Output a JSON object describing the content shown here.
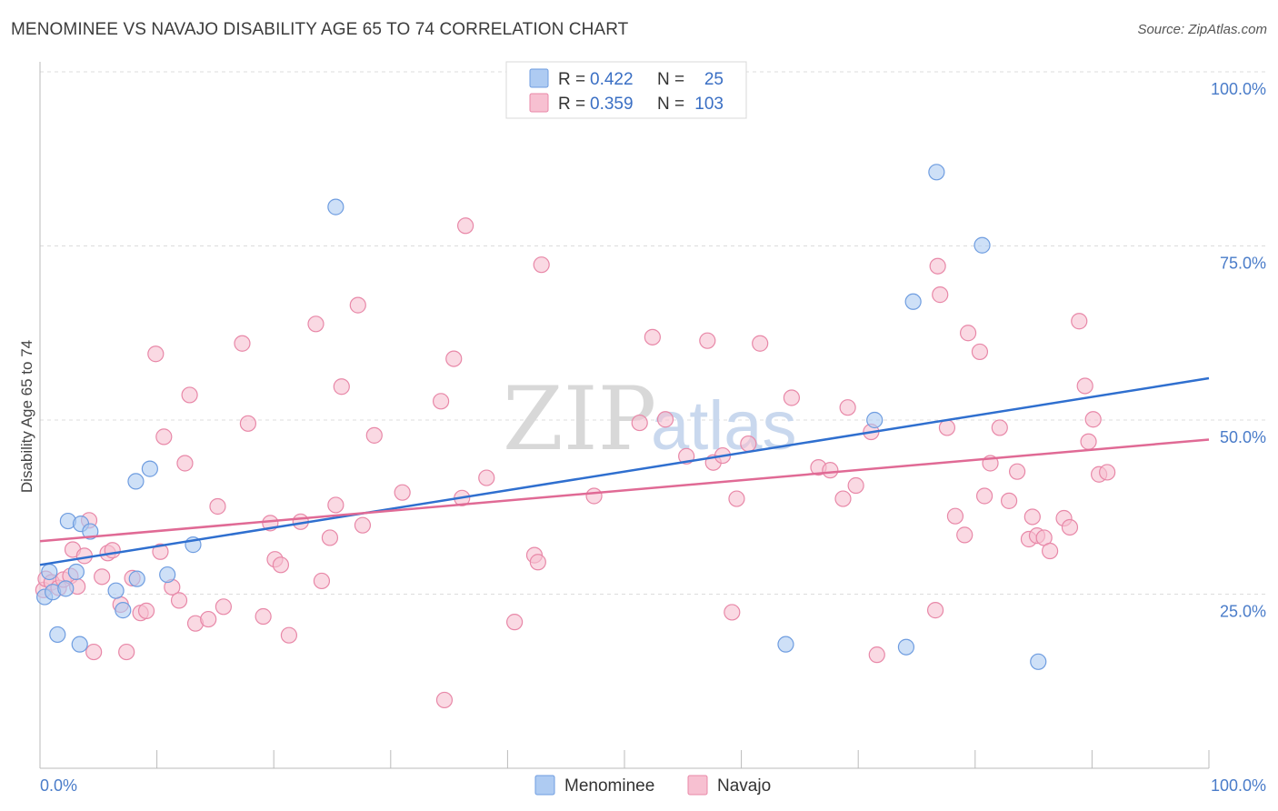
{
  "title": "MENOMINEE VS NAVAJO DISABILITY AGE 65 TO 74 CORRELATION CHART",
  "source": "Source: ZipAtlas.com",
  "watermark": {
    "part1": "ZIP",
    "part2": "atlas"
  },
  "legend": {
    "rows": [
      {
        "r_label": "R =",
        "r_value": "0.422",
        "n_label": "N =",
        "n_value": "25",
        "color": "#aecbf2",
        "stroke": "#6f9de0"
      },
      {
        "r_label": "R =",
        "r_value": "0.359",
        "n_label": "N =",
        "n_value": "103",
        "color": "#f7c0d1",
        "stroke": "#e888a8"
      }
    ]
  },
  "bottom_legend": [
    {
      "label": "Menominee",
      "color": "#aecbf2",
      "stroke": "#6f9de0"
    },
    {
      "label": "Navajo",
      "color": "#f7c0d1",
      "stroke": "#e888a8"
    }
  ],
  "chart_data": {
    "type": "scatter",
    "title": "MENOMINEE VS NAVAJO DISABILITY AGE 65 TO 74 CORRELATION CHART",
    "xlabel": "",
    "ylabel": "Disability Age 65 to 74",
    "xlim": [
      0,
      100
    ],
    "ylim": [
      0,
      100
    ],
    "x_tick_labels": {
      "left": "0.0%",
      "right": "100.0%"
    },
    "y_ticks": [
      {
        "value": 25,
        "label": "25.0%"
      },
      {
        "value": 50,
        "label": "50.0%"
      },
      {
        "value": 75,
        "label": "75.0%"
      },
      {
        "value": 100,
        "label": "100.0%"
      }
    ],
    "grid": true,
    "legend_position": "top-center",
    "series": [
      {
        "name": "Menominee",
        "color": "#6f9de0",
        "fill": "#aecbf2",
        "trend": {
          "x0": 0,
          "y0": 29.2,
          "x1": 100,
          "y1": 56.0,
          "color": "#2f6fcf"
        },
        "points": [
          [
            0.4,
            24.6
          ],
          [
            0.8,
            28.2
          ],
          [
            1.1,
            25.3
          ],
          [
            1.5,
            19.2
          ],
          [
            2.2,
            25.8
          ],
          [
            2.4,
            35.5
          ],
          [
            3.1,
            28.2
          ],
          [
            3.4,
            17.8
          ],
          [
            3.5,
            35.1
          ],
          [
            4.3,
            34.0
          ],
          [
            6.5,
            25.5
          ],
          [
            7.1,
            22.7
          ],
          [
            8.3,
            27.2
          ],
          [
            8.2,
            41.2
          ],
          [
            9.4,
            43.0
          ],
          [
            10.9,
            27.8
          ],
          [
            13.1,
            32.1
          ],
          [
            25.3,
            80.6
          ],
          [
            63.8,
            17.8
          ],
          [
            71.4,
            50.0
          ],
          [
            74.1,
            17.4
          ],
          [
            74.7,
            67.0
          ],
          [
            76.7,
            85.6
          ],
          [
            80.6,
            75.1
          ],
          [
            85.4,
            15.3
          ]
        ]
      },
      {
        "name": "Navajo",
        "color": "#e888a8",
        "fill": "#f7c0d1",
        "trend": {
          "x0": 0,
          "y0": 32.6,
          "x1": 100,
          "y1": 47.2,
          "color": "#e06a95"
        },
        "points": [
          [
            0.3,
            25.6
          ],
          [
            0.5,
            27.2
          ],
          [
            1.0,
            26.7
          ],
          [
            1.6,
            25.9
          ],
          [
            2.0,
            27.1
          ],
          [
            2.6,
            27.6
          ],
          [
            2.8,
            31.4
          ],
          [
            3.2,
            26.1
          ],
          [
            3.8,
            30.5
          ],
          [
            4.2,
            35.6
          ],
          [
            4.6,
            16.7
          ],
          [
            5.3,
            27.5
          ],
          [
            5.8,
            30.9
          ],
          [
            6.2,
            31.3
          ],
          [
            6.9,
            23.5
          ],
          [
            7.4,
            16.7
          ],
          [
            7.9,
            27.3
          ],
          [
            8.6,
            22.3
          ],
          [
            9.1,
            22.6
          ],
          [
            9.9,
            59.5
          ],
          [
            10.3,
            31.1
          ],
          [
            10.6,
            47.6
          ],
          [
            11.3,
            26.0
          ],
          [
            11.9,
            24.1
          ],
          [
            12.4,
            43.8
          ],
          [
            12.8,
            53.6
          ],
          [
            13.3,
            20.8
          ],
          [
            14.4,
            21.4
          ],
          [
            15.2,
            37.6
          ],
          [
            15.7,
            23.2
          ],
          [
            17.3,
            61.0
          ],
          [
            17.8,
            49.5
          ],
          [
            19.1,
            21.8
          ],
          [
            19.7,
            35.2
          ],
          [
            20.1,
            30.0
          ],
          [
            20.6,
            29.2
          ],
          [
            21.3,
            19.1
          ],
          [
            22.3,
            35.4
          ],
          [
            23.6,
            63.8
          ],
          [
            24.1,
            26.9
          ],
          [
            24.8,
            33.1
          ],
          [
            25.3,
            37.8
          ],
          [
            25.8,
            54.8
          ],
          [
            27.2,
            66.5
          ],
          [
            27.6,
            34.9
          ],
          [
            28.6,
            47.8
          ],
          [
            31.0,
            39.6
          ],
          [
            34.3,
            52.7
          ],
          [
            34.6,
            9.8
          ],
          [
            35.4,
            58.8
          ],
          [
            36.1,
            38.8
          ],
          [
            36.4,
            77.9
          ],
          [
            38.2,
            41.7
          ],
          [
            40.6,
            21.0
          ],
          [
            42.3,
            30.6
          ],
          [
            42.6,
            29.6
          ],
          [
            42.9,
            72.3
          ],
          [
            47.4,
            39.1
          ],
          [
            52.4,
            61.9
          ],
          [
            51.3,
            49.6
          ],
          [
            53.5,
            50.1
          ],
          [
            55.3,
            44.8
          ],
          [
            57.1,
            61.4
          ],
          [
            57.6,
            43.9
          ],
          [
            58.4,
            44.9
          ],
          [
            59.2,
            22.4
          ],
          [
            59.6,
            38.7
          ],
          [
            60.6,
            46.6
          ],
          [
            61.6,
            61.0
          ],
          [
            64.3,
            53.2
          ],
          [
            66.6,
            43.2
          ],
          [
            67.6,
            42.8
          ],
          [
            68.7,
            38.7
          ],
          [
            69.1,
            51.8
          ],
          [
            69.8,
            40.6
          ],
          [
            71.1,
            48.3
          ],
          [
            71.6,
            16.3
          ],
          [
            76.6,
            22.7
          ],
          [
            76.8,
            72.1
          ],
          [
            77.0,
            68.0
          ],
          [
            77.6,
            48.9
          ],
          [
            78.3,
            36.2
          ],
          [
            79.1,
            33.5
          ],
          [
            79.4,
            62.5
          ],
          [
            80.4,
            59.8
          ],
          [
            80.8,
            39.1
          ],
          [
            81.3,
            43.8
          ],
          [
            82.1,
            48.9
          ],
          [
            82.9,
            38.4
          ],
          [
            83.6,
            42.6
          ],
          [
            84.6,
            32.9
          ],
          [
            84.9,
            36.1
          ],
          [
            85.3,
            33.4
          ],
          [
            85.9,
            33.1
          ],
          [
            86.4,
            31.2
          ],
          [
            87.6,
            35.9
          ],
          [
            88.1,
            34.6
          ],
          [
            88.9,
            64.2
          ],
          [
            89.4,
            54.9
          ],
          [
            89.7,
            46.9
          ],
          [
            90.1,
            50.1
          ],
          [
            90.6,
            42.2
          ],
          [
            91.3,
            42.5
          ]
        ]
      }
    ]
  }
}
